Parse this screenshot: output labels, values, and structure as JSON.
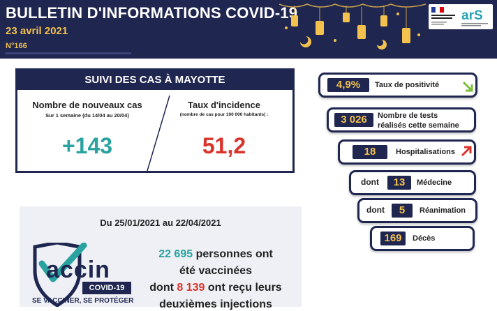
{
  "header": {
    "title": "BULLETIN D'INFORMATIONS COVID-19",
    "date": "23 avril 2021",
    "issue": "N°166"
  },
  "cases": {
    "title": "SUIVI DES CAS À MAYOTTE",
    "new_cases_label": "Nombre de nouveaux cas",
    "new_cases_period": "Sur 1 semaine (du 14/04 au 20/04)",
    "new_cases_value": "+143",
    "incidence_label": "Taux d'incidence",
    "incidence_note": "(nombre de cas pour 100 000 habitants) :",
    "incidence_value": "51,2"
  },
  "indicators": {
    "positivity_value": "4,9%",
    "positivity_label": "Taux de positivité",
    "positivity_trend": "down",
    "tests_value": "3 026",
    "tests_label_1": "Nombre de tests",
    "tests_label_2": "réalisés cette semaine",
    "hosp_value": "18",
    "hosp_label": "Hospitalisations",
    "hosp_trend": "up",
    "med_prefix": "dont",
    "med_value": "13",
    "med_label": "Médecine",
    "rea_prefix": "dont",
    "rea_value": "5",
    "rea_label": "Réanimation",
    "deaths_value": "169",
    "deaths_label": "Décès"
  },
  "vaccination": {
    "period": "Du 25/01/2021 au 22/04/2021",
    "logo_word": "accin",
    "logo_badge": "COVID-19",
    "logo_tagline": "SE VACCINER, SE PROTÉGER",
    "vaccinated_count": "22  695",
    "vaccinated_text": "personnes ont",
    "line2": "été vaccinées",
    "line3_prefix": "dont",
    "second_dose_count": "8 139",
    "line3_suffix": "ont reçu leurs",
    "line4": "deuxièmes injections"
  },
  "colors": {
    "navy": "#1f2650",
    "gold": "#f2c14e",
    "teal": "#2aa3a0",
    "red": "#d9342b",
    "trend_down": "#7cbf3a"
  }
}
